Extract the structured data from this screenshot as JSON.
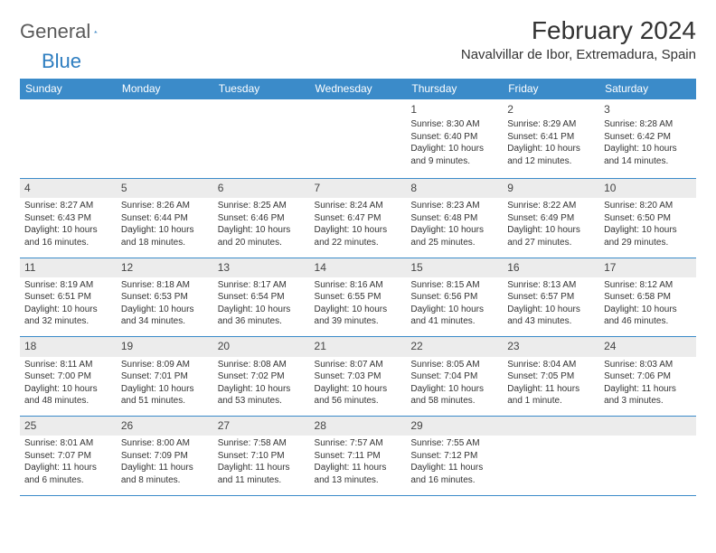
{
  "brand": {
    "part1": "General",
    "part2": "Blue"
  },
  "title": "February 2024",
  "location": "Navalvillar de Ibor, Extremadura, Spain",
  "colors": {
    "accent": "#3b8bc9",
    "shade": "#ececec",
    "text": "#333333"
  },
  "weekdays": [
    "Sunday",
    "Monday",
    "Tuesday",
    "Wednesday",
    "Thursday",
    "Friday",
    "Saturday"
  ],
  "weeks": [
    {
      "nums": [
        "",
        "",
        "",
        "",
        "1",
        "2",
        "3"
      ],
      "cells": [
        "",
        "",
        "",
        "",
        "Sunrise: 8:30 AM\nSunset: 6:40 PM\nDaylight: 10 hours and 9 minutes.",
        "Sunrise: 8:29 AM\nSunset: 6:41 PM\nDaylight: 10 hours and 12 minutes.",
        "Sunrise: 8:28 AM\nSunset: 6:42 PM\nDaylight: 10 hours and 14 minutes."
      ]
    },
    {
      "nums": [
        "4",
        "5",
        "6",
        "7",
        "8",
        "9",
        "10"
      ],
      "cells": [
        "Sunrise: 8:27 AM\nSunset: 6:43 PM\nDaylight: 10 hours and 16 minutes.",
        "Sunrise: 8:26 AM\nSunset: 6:44 PM\nDaylight: 10 hours and 18 minutes.",
        "Sunrise: 8:25 AM\nSunset: 6:46 PM\nDaylight: 10 hours and 20 minutes.",
        "Sunrise: 8:24 AM\nSunset: 6:47 PM\nDaylight: 10 hours and 22 minutes.",
        "Sunrise: 8:23 AM\nSunset: 6:48 PM\nDaylight: 10 hours and 25 minutes.",
        "Sunrise: 8:22 AM\nSunset: 6:49 PM\nDaylight: 10 hours and 27 minutes.",
        "Sunrise: 8:20 AM\nSunset: 6:50 PM\nDaylight: 10 hours and 29 minutes."
      ]
    },
    {
      "nums": [
        "11",
        "12",
        "13",
        "14",
        "15",
        "16",
        "17"
      ],
      "cells": [
        "Sunrise: 8:19 AM\nSunset: 6:51 PM\nDaylight: 10 hours and 32 minutes.",
        "Sunrise: 8:18 AM\nSunset: 6:53 PM\nDaylight: 10 hours and 34 minutes.",
        "Sunrise: 8:17 AM\nSunset: 6:54 PM\nDaylight: 10 hours and 36 minutes.",
        "Sunrise: 8:16 AM\nSunset: 6:55 PM\nDaylight: 10 hours and 39 minutes.",
        "Sunrise: 8:15 AM\nSunset: 6:56 PM\nDaylight: 10 hours and 41 minutes.",
        "Sunrise: 8:13 AM\nSunset: 6:57 PM\nDaylight: 10 hours and 43 minutes.",
        "Sunrise: 8:12 AM\nSunset: 6:58 PM\nDaylight: 10 hours and 46 minutes."
      ]
    },
    {
      "nums": [
        "18",
        "19",
        "20",
        "21",
        "22",
        "23",
        "24"
      ],
      "cells": [
        "Sunrise: 8:11 AM\nSunset: 7:00 PM\nDaylight: 10 hours and 48 minutes.",
        "Sunrise: 8:09 AM\nSunset: 7:01 PM\nDaylight: 10 hours and 51 minutes.",
        "Sunrise: 8:08 AM\nSunset: 7:02 PM\nDaylight: 10 hours and 53 minutes.",
        "Sunrise: 8:07 AM\nSunset: 7:03 PM\nDaylight: 10 hours and 56 minutes.",
        "Sunrise: 8:05 AM\nSunset: 7:04 PM\nDaylight: 10 hours and 58 minutes.",
        "Sunrise: 8:04 AM\nSunset: 7:05 PM\nDaylight: 11 hours and 1 minute.",
        "Sunrise: 8:03 AM\nSunset: 7:06 PM\nDaylight: 11 hours and 3 minutes."
      ]
    },
    {
      "nums": [
        "25",
        "26",
        "27",
        "28",
        "29",
        "",
        ""
      ],
      "cells": [
        "Sunrise: 8:01 AM\nSunset: 7:07 PM\nDaylight: 11 hours and 6 minutes.",
        "Sunrise: 8:00 AM\nSunset: 7:09 PM\nDaylight: 11 hours and 8 minutes.",
        "Sunrise: 7:58 AM\nSunset: 7:10 PM\nDaylight: 11 hours and 11 minutes.",
        "Sunrise: 7:57 AM\nSunset: 7:11 PM\nDaylight: 11 hours and 13 minutes.",
        "Sunrise: 7:55 AM\nSunset: 7:12 PM\nDaylight: 11 hours and 16 minutes.",
        "",
        ""
      ]
    }
  ]
}
